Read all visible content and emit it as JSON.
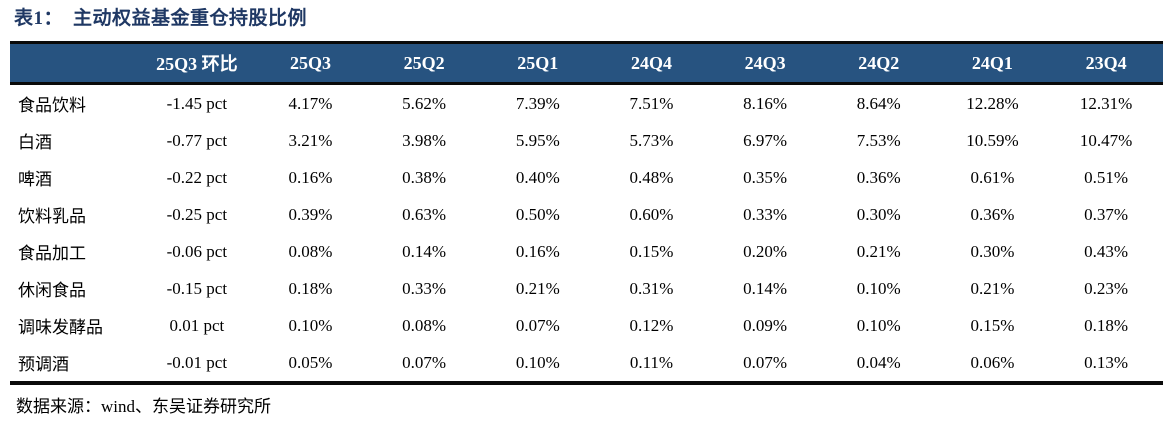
{
  "title": {
    "prefix": "表1：",
    "text": "主动权益基金重仓持股比例"
  },
  "table": {
    "columns": [
      "",
      "25Q3 环比",
      "25Q3",
      "25Q2",
      "25Q1",
      "24Q4",
      "24Q3",
      "24Q2",
      "24Q1",
      "23Q4"
    ],
    "rows": [
      {
        "label": "食品饮料",
        "values": [
          "-1.45 pct",
          "4.17%",
          "5.62%",
          "7.39%",
          "7.51%",
          "8.16%",
          "8.64%",
          "12.28%",
          "12.31%"
        ]
      },
      {
        "label": "白酒",
        "values": [
          "-0.77 pct",
          "3.21%",
          "3.98%",
          "5.95%",
          "5.73%",
          "6.97%",
          "7.53%",
          "10.59%",
          "10.47%"
        ]
      },
      {
        "label": "啤酒",
        "values": [
          "-0.22 pct",
          "0.16%",
          "0.38%",
          "0.40%",
          "0.48%",
          "0.35%",
          "0.36%",
          "0.61%",
          "0.51%"
        ]
      },
      {
        "label": "饮料乳品",
        "values": [
          "-0.25 pct",
          "0.39%",
          "0.63%",
          "0.50%",
          "0.60%",
          "0.33%",
          "0.30%",
          "0.36%",
          "0.37%"
        ]
      },
      {
        "label": "食品加工",
        "values": [
          "-0.06 pct",
          "0.08%",
          "0.14%",
          "0.16%",
          "0.15%",
          "0.20%",
          "0.21%",
          "0.30%",
          "0.43%"
        ]
      },
      {
        "label": "休闲食品",
        "values": [
          "-0.15 pct",
          "0.18%",
          "0.33%",
          "0.21%",
          "0.31%",
          "0.14%",
          "0.10%",
          "0.21%",
          "0.23%"
        ]
      },
      {
        "label": "调味发酵品",
        "values": [
          "0.01 pct",
          "0.10%",
          "0.08%",
          "0.07%",
          "0.12%",
          "0.09%",
          "0.10%",
          "0.15%",
          "0.18%"
        ]
      },
      {
        "label": "预调酒",
        "values": [
          "-0.01 pct",
          "0.05%",
          "0.07%",
          "0.10%",
          "0.11%",
          "0.07%",
          "0.04%",
          "0.06%",
          "0.13%"
        ]
      }
    ]
  },
  "footer": {
    "source": "数据来源：wind、东吴证券研究所"
  },
  "colors": {
    "header_bg": "#275380",
    "title_text": "#1F3864",
    "border": "#0a0a0a",
    "body_text": "#000000"
  }
}
